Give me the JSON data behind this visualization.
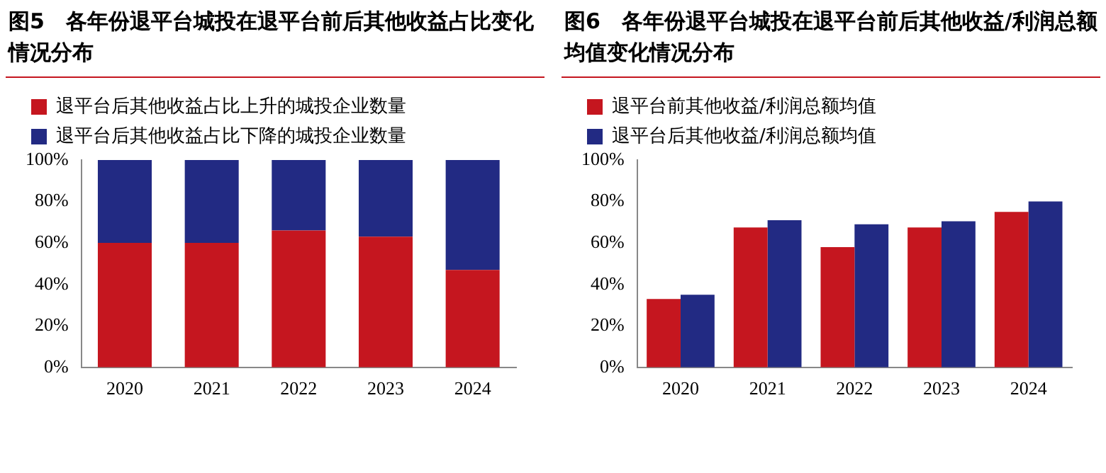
{
  "chart_data": [
    {
      "type": "bar",
      "title": "图5　各年份退平台城投在退平台前后其他收益占比变化情况分布",
      "categories": [
        "2020",
        "2021",
        "2022",
        "2023",
        "2024"
      ],
      "stacked": true,
      "legend": "top left",
      "grid": false,
      "series": [
        {
          "name": "退平台后其他收益占比上升的城投企业数量",
          "color": "#c5161f",
          "values": [
            60,
            60,
            66,
            63,
            47
          ]
        },
        {
          "name": "退平台后其他收益占比下降的城投企业数量",
          "color": "#222a83",
          "values": [
            40,
            40,
            34,
            37,
            53
          ]
        }
      ],
      "ylim": [
        0,
        100
      ],
      "yticks": [
        {
          "value": 0,
          "label": "0%"
        },
        {
          "value": 20,
          "label": "20%"
        },
        {
          "value": 40,
          "label": "40%"
        },
        {
          "value": 60,
          "label": "60%"
        },
        {
          "value": 80,
          "label": "80%"
        },
        {
          "value": 100,
          "label": "100%"
        }
      ]
    },
    {
      "type": "bar",
      "title": "图6　各年份退平台城投在退平台前后其他收益/利润总额均值变化情况分布",
      "categories": [
        "2020",
        "2021",
        "2022",
        "2023",
        "2024"
      ],
      "legend": "top left",
      "grid": false,
      "series": [
        {
          "name": "退平台前其他收益/利润总额均值",
          "color": "#c5161f",
          "values": [
            33,
            67.5,
            58,
            67.5,
            75
          ]
        },
        {
          "name": "退平台后其他收益/利润总额均值",
          "color": "#222a83",
          "values": [
            35,
            71,
            69,
            70.5,
            80
          ]
        }
      ],
      "ylim": [
        0,
        100
      ],
      "yticks": [
        {
          "value": 0,
          "label": "0%"
        },
        {
          "value": 20,
          "label": "20%"
        },
        {
          "value": 40,
          "label": "40%"
        },
        {
          "value": 60,
          "label": "60%"
        },
        {
          "value": 80,
          "label": "80%"
        },
        {
          "value": 100,
          "label": "100%"
        }
      ]
    }
  ]
}
